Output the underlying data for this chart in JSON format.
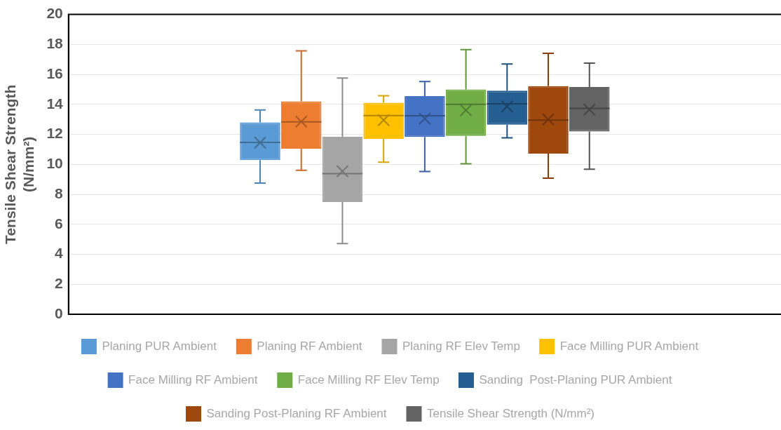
{
  "chart_data": {
    "type": "box",
    "ylabel": "Tensile Shear Strength (N/mm²)",
    "categories": [
      null
    ],
    "ylim": [
      0,
      20
    ],
    "yticks": [
      0,
      2,
      4,
      6,
      8,
      10,
      12,
      14,
      16,
      18,
      20
    ],
    "grid": "y",
    "legend": "bottom",
    "tick_labels": "y",
    "series": [
      {
        "name": "Planing PUR Ambient",
        "color": "#5b9bd5",
        "boxes": [
          {
            "low": 8.75,
            "q1": 10.28,
            "median": 11.46,
            "q3": 12.8,
            "high": 13.63,
            "mean": 11.45
          }
        ]
      },
      {
        "name": "Planing RF Ambient",
        "color": "#ed7d31",
        "boxes": [
          {
            "low": 9.6,
            "q1": 11.04,
            "median": 12.83,
            "q3": 14.2,
            "high": 17.57,
            "mean": 12.85
          }
        ]
      },
      {
        "name": "Planing RF Elev Temp",
        "color": "#a5a5a5",
        "boxes": [
          {
            "low": 4.72,
            "q1": 7.49,
            "median": 9.38,
            "q3": 11.84,
            "high": 15.76,
            "mean": 9.54
          }
        ]
      },
      {
        "name": "Face Milling PUR Ambient",
        "color": "#ffc000",
        "boxes": [
          {
            "low": 10.14,
            "q1": 11.7,
            "median": 13.25,
            "q3": 14.11,
            "high": 14.58,
            "mean": 12.95
          }
        ]
      },
      {
        "name": "Face Milling RF Ambient",
        "color": "#4472c4",
        "boxes": [
          {
            "low": 9.52,
            "q1": 11.83,
            "median": 13.24,
            "q3": 14.55,
            "high": 15.52,
            "mean": 13.05
          }
        ]
      },
      {
        "name": "Face Milling RF Elev Temp",
        "color": "#70ad47",
        "boxes": [
          {
            "low": 10.04,
            "q1": 11.9,
            "median": 14.0,
            "q3": 15.0,
            "high": 17.65,
            "mean": 13.61
          }
        ]
      },
      {
        "name": "Sanding  Post-Planing PUR Ambient",
        "color": "#255e91",
        "boxes": [
          {
            "low": 11.77,
            "q1": 12.65,
            "median": 14.04,
            "q3": 14.92,
            "high": 16.69,
            "mean": 13.86
          }
        ]
      },
      {
        "name": "Sanding Post-Planing RF Ambient",
        "color": "#9e480e",
        "boxes": [
          {
            "low": 9.08,
            "q1": 10.72,
            "median": 12.95,
            "q3": 15.22,
            "high": 17.41,
            "mean": 13.0
          }
        ]
      },
      {
        "name": "Tensile Shear Strength (N/mm²)",
        "color": "#636363",
        "boxes": [
          {
            "low": 9.68,
            "q1": 12.19,
            "median": 13.73,
            "q3": 15.16,
            "high": 16.75,
            "mean": 13.65
          }
        ]
      }
    ]
  }
}
